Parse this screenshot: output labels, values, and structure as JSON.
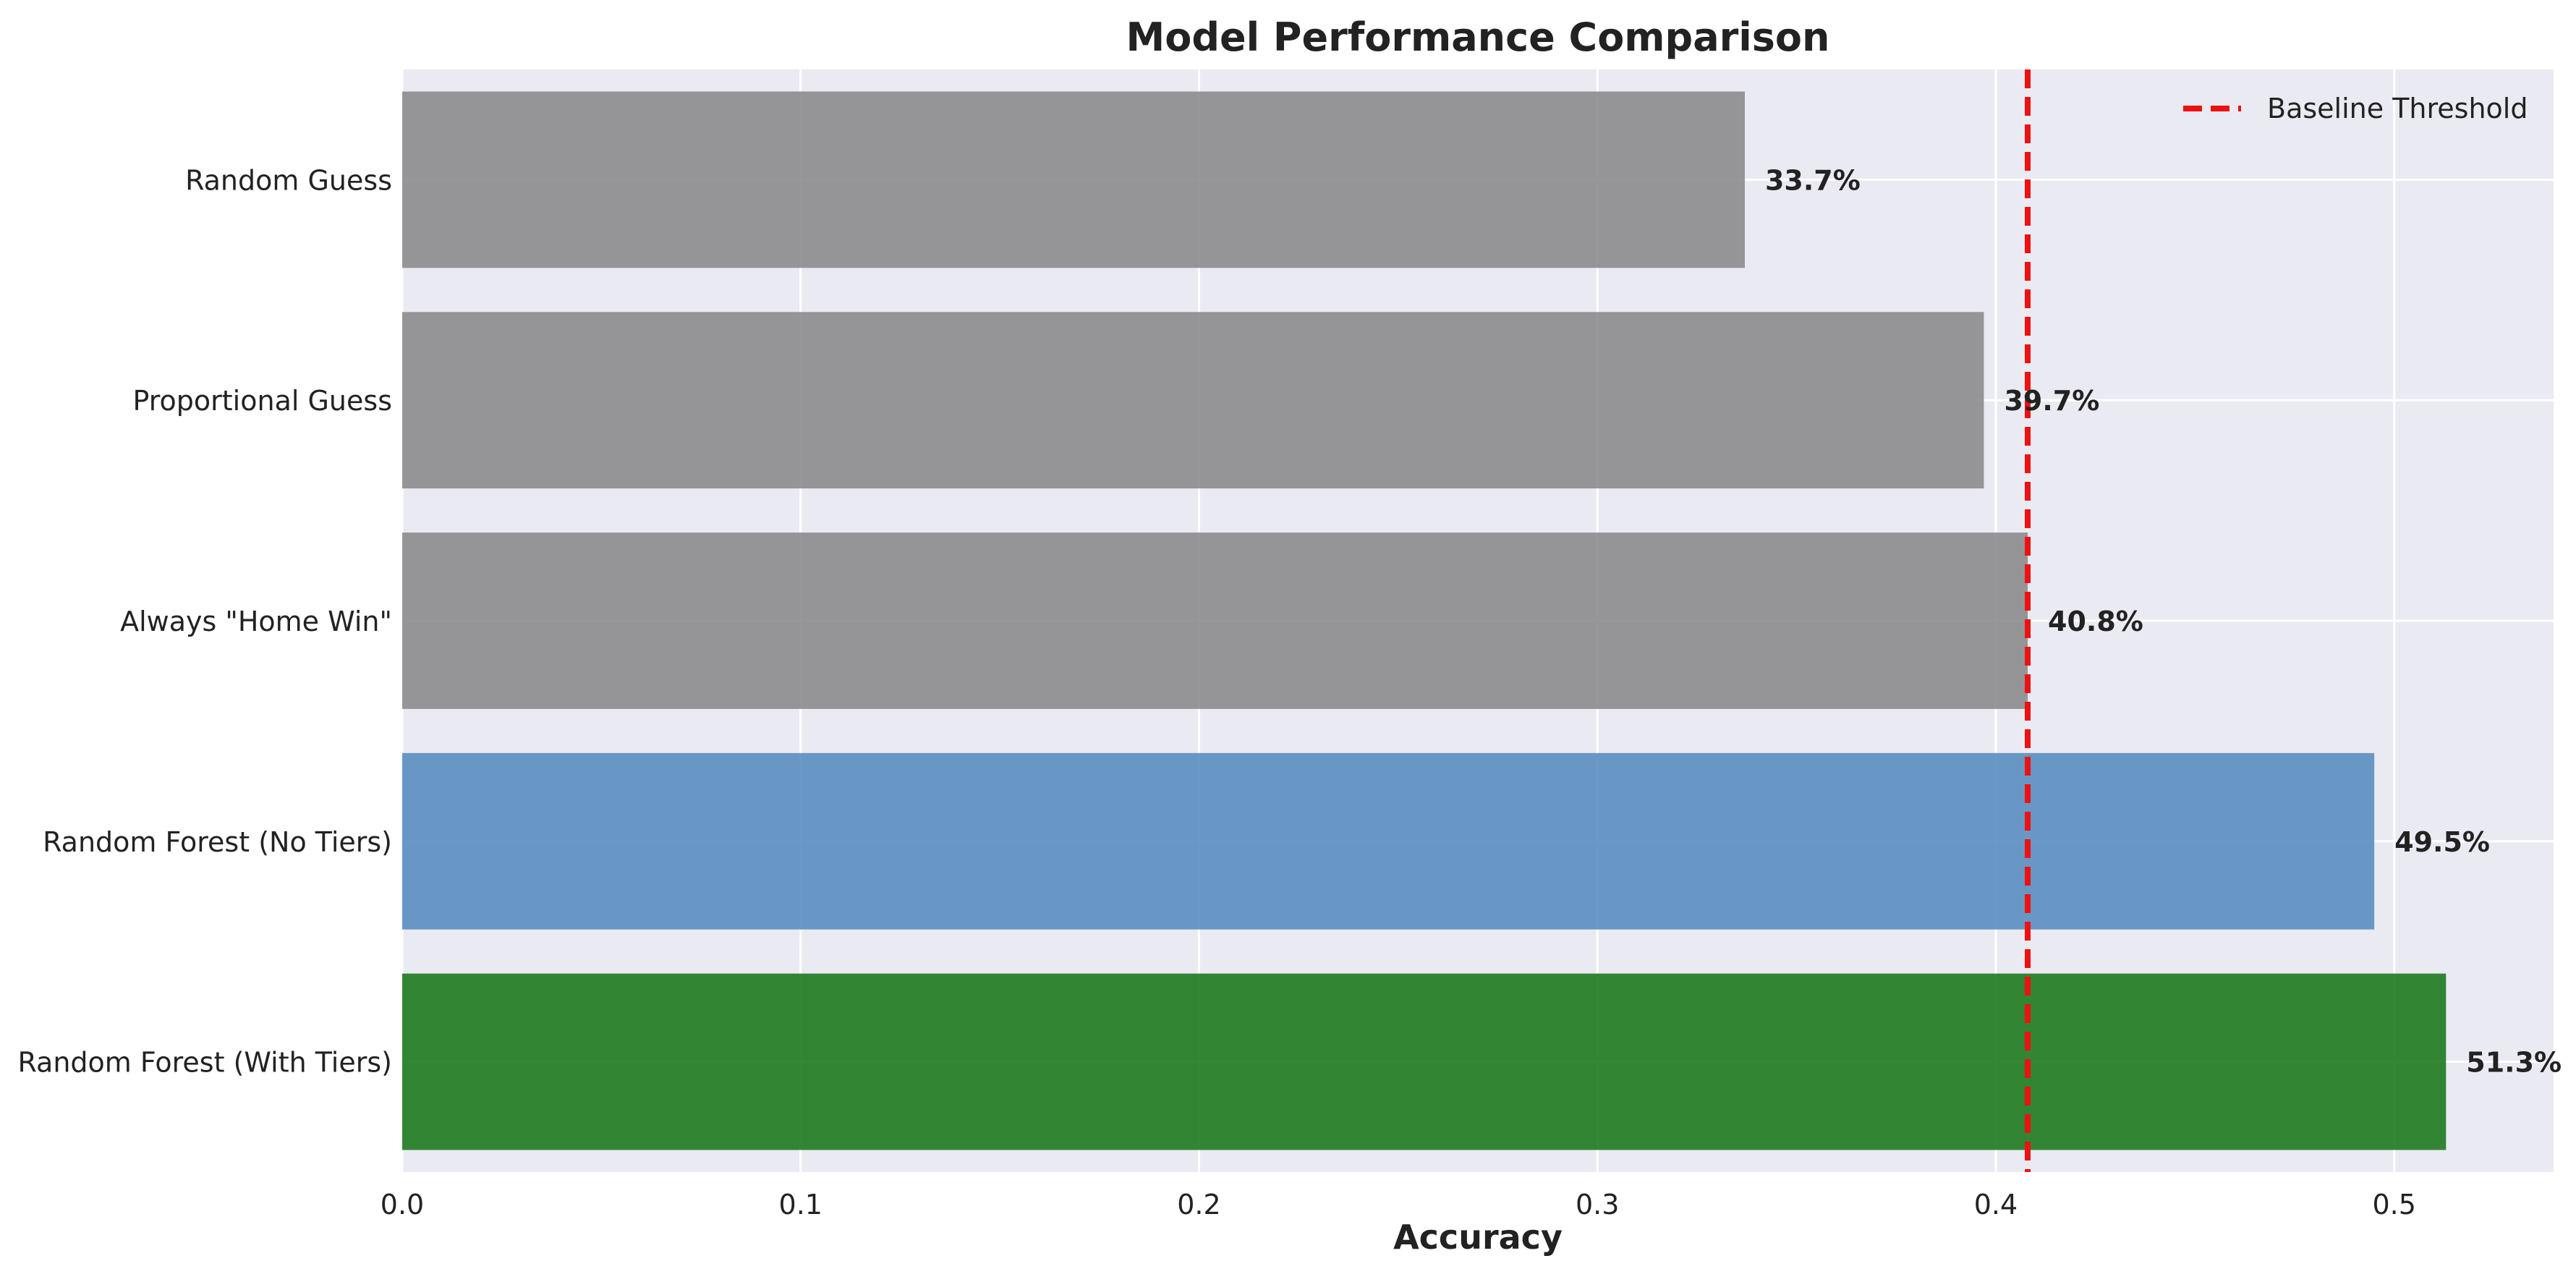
{
  "chart_data": {
    "type": "bar",
    "orientation": "horizontal",
    "title": "Model Performance Comparison",
    "xlabel": "Accuracy",
    "ylabel": "",
    "xlim": [
      0,
      0.54
    ],
    "xticks": [
      0.0,
      0.1,
      0.2,
      0.3,
      0.4,
      0.5
    ],
    "xtick_labels": [
      "0.0",
      "0.1",
      "0.2",
      "0.3",
      "0.4",
      "0.5"
    ],
    "grid": true,
    "legend_position": "top-right",
    "categories": [
      "Random Guess",
      "Proportional Guess",
      "Always \"Home Win\"",
      "Random Forest (No Tiers)",
      "Random Forest (With Tiers)"
    ],
    "values": [
      0.337,
      0.397,
      0.408,
      0.495,
      0.513
    ],
    "value_labels": [
      "33.7%",
      "39.7%",
      "40.8%",
      "49.5%",
      "51.3%"
    ],
    "bar_colors": [
      "#8c8c8e",
      "#8c8c8e",
      "#8c8c8e",
      "#5b8ec0",
      "#1e7a1e"
    ],
    "reference_line": {
      "name": "Baseline Threshold",
      "value": 0.408,
      "color": "#ee1111",
      "style": "dashed"
    }
  },
  "colors": {
    "plot_background": "#eaeaf2",
    "grid": "#ffffff",
    "text": "#222222"
  }
}
